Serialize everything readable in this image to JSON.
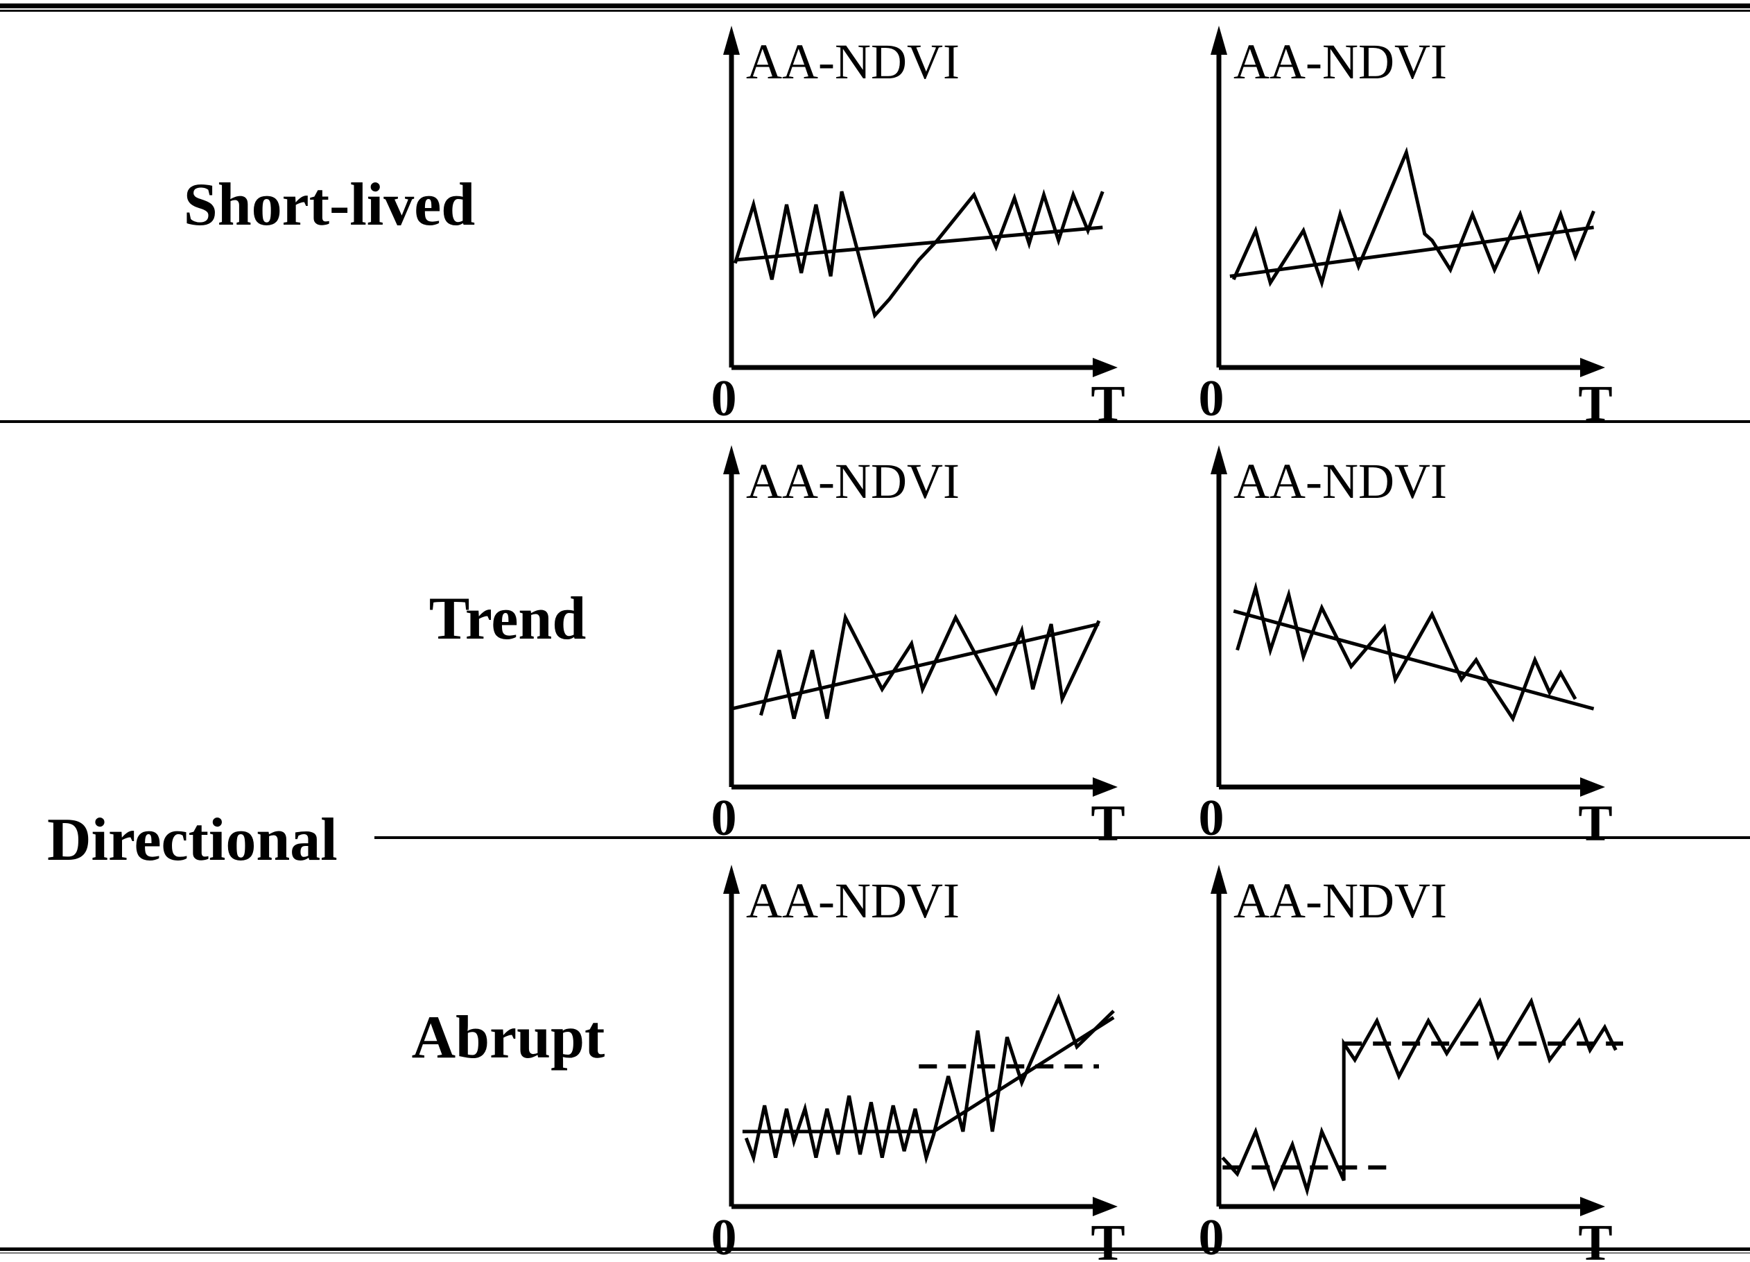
{
  "figure": {
    "background": "#ffffff",
    "ink_color": "#000000",
    "row_labels": {
      "short_lived": "Short-lived",
      "directional": "Directional",
      "trend": "Trend",
      "abrupt": "Abrupt"
    }
  },
  "chart_data": [
    {
      "id": "short-lived-recovery",
      "row": "Short-lived",
      "column": 1,
      "type": "line",
      "ylabel": "AA-NDVI",
      "xlabel": "T",
      "origin_label": "0",
      "x_range": [
        "0",
        "T"
      ],
      "description": "Noisy AA-NDVI series with a short-lived negative anomaly (dip) that recovers back to a slightly rising trend line.",
      "series": [
        {
          "name": "ndvi-signal",
          "style": "solid",
          "width": 5,
          "points": [
            [
              1,
              68
            ],
            [
              6,
              50
            ],
            [
              11,
              73
            ],
            [
              15,
              50
            ],
            [
              19,
              71
            ],
            [
              23,
              50
            ],
            [
              27,
              72
            ],
            [
              30,
              46
            ],
            [
              39,
              84
            ],
            [
              43,
              79
            ],
            [
              47,
              73
            ],
            [
              51,
              67
            ],
            [
              56,
              61
            ],
            [
              66,
              47
            ],
            [
              72,
              63
            ],
            [
              77,
              48
            ],
            [
              81,
              62
            ],
            [
              85,
              47
            ],
            [
              89,
              61
            ],
            [
              93,
              47
            ],
            [
              97,
              58
            ],
            [
              101,
              46
            ]
          ]
        },
        {
          "name": "trend-line",
          "style": "solid",
          "width": 5,
          "points": [
            [
              1,
              67
            ],
            [
              101,
              57
            ]
          ]
        }
      ]
    },
    {
      "id": "short-lived-spike",
      "row": "Short-lived",
      "column": 2,
      "type": "line",
      "ylabel": "AA-NDVI",
      "xlabel": "T",
      "origin_label": "0",
      "x_range": [
        "0",
        "T"
      ],
      "description": "Noisy AA-NDVI series with a short-lived positive anomaly (spike) returning to a slightly rising trend line.",
      "series": [
        {
          "name": "ndvi-signal",
          "style": "solid",
          "width": 5,
          "points": [
            [
              4,
              73
            ],
            [
              10,
              58
            ],
            [
              14,
              74
            ],
            [
              23,
              58
            ],
            [
              28,
              74
            ],
            [
              33,
              53
            ],
            [
              38,
              69
            ],
            [
              51,
              34
            ],
            [
              56,
              59
            ],
            [
              58,
              61
            ],
            [
              63,
              70
            ],
            [
              69,
              53
            ],
            [
              75,
              70
            ],
            [
              82,
              53
            ],
            [
              87,
              70
            ],
            [
              93,
              53
            ],
            [
              97,
              66
            ],
            [
              102,
              52
            ]
          ]
        },
        {
          "name": "trend-line",
          "style": "solid",
          "width": 5,
          "points": [
            [
              3,
              72
            ],
            [
              102,
              57
            ]
          ]
        }
      ]
    },
    {
      "id": "trend-increase",
      "row": "Directional / Trend",
      "column": 1,
      "type": "line",
      "ylabel": "AA-NDVI",
      "xlabel": "T",
      "origin_label": "0",
      "x_range": [
        "0",
        "T"
      ],
      "description": "Noisy AA-NDVI series gradually increasing along an upward linear trend line.",
      "series": [
        {
          "name": "ndvi-signal",
          "style": "solid",
          "width": 5,
          "points": [
            [
              8,
              78
            ],
            [
              13,
              58
            ],
            [
              17,
              79
            ],
            [
              22,
              58
            ],
            [
              26,
              79
            ],
            [
              31,
              48
            ],
            [
              41,
              70
            ],
            [
              49,
              56
            ],
            [
              52,
              70
            ],
            [
              61,
              48
            ],
            [
              72,
              71
            ],
            [
              79,
              52
            ],
            [
              82,
              70
            ],
            [
              87,
              50
            ],
            [
              90,
              73
            ],
            [
              100,
              49
            ]
          ]
        },
        {
          "name": "trend-line",
          "style": "solid",
          "width": 5,
          "points": [
            [
              0,
              76
            ],
            [
              100,
              50
            ]
          ]
        }
      ]
    },
    {
      "id": "trend-decrease",
      "row": "Directional / Trend",
      "column": 2,
      "type": "line",
      "ylabel": "AA-NDVI",
      "xlabel": "T",
      "origin_label": "0",
      "x_range": [
        "0",
        "T"
      ],
      "description": "Noisy AA-NDVI series gradually decreasing along a downward linear trend line.",
      "series": [
        {
          "name": "ndvi-signal",
          "style": "solid",
          "width": 5,
          "points": [
            [
              5,
              58
            ],
            [
              10,
              39
            ],
            [
              14,
              58
            ],
            [
              19,
              41
            ],
            [
              23,
              60
            ],
            [
              28,
              45
            ],
            [
              36,
              63
            ],
            [
              45,
              51
            ],
            [
              48,
              67
            ],
            [
              58,
              47
            ],
            [
              66,
              67
            ],
            [
              70,
              61
            ],
            [
              73,
              67
            ],
            [
              80,
              79
            ],
            [
              86,
              61
            ],
            [
              90,
              71
            ],
            [
              93,
              65
            ],
            [
              97,
              73
            ]
          ]
        },
        {
          "name": "trend-line",
          "style": "solid",
          "width": 5,
          "points": [
            [
              4,
              46
            ],
            [
              102,
              76
            ]
          ]
        }
      ]
    },
    {
      "id": "abrupt-accelerating-increase",
      "row": "Directional / Abrupt",
      "column": 1,
      "type": "line",
      "ylabel": "AA-NDVI",
      "xlabel": "T",
      "origin_label": "0",
      "x_range": [
        "0",
        "T"
      ],
      "description": "Stable noisy AA-NDVI level followed by an abrupt change to a steeply rising segment; dashed reference line marks the new mean level.",
      "series": [
        {
          "name": "ndvi-signal",
          "style": "solid",
          "width": 5,
          "points": [
            [
              4,
              79
            ],
            [
              6,
              85
            ],
            [
              9,
              69
            ],
            [
              12,
              85
            ],
            [
              15,
              70
            ],
            [
              17,
              80
            ],
            [
              20,
              70
            ],
            [
              23,
              85
            ],
            [
              26,
              70
            ],
            [
              29,
              84
            ],
            [
              32,
              66
            ],
            [
              35,
              84
            ],
            [
              38,
              68
            ],
            [
              41,
              85
            ],
            [
              44,
              69
            ],
            [
              47,
              83
            ],
            [
              50,
              70
            ],
            [
              53,
              85
            ],
            [
              55,
              78
            ],
            [
              59,
              60
            ],
            [
              63,
              77
            ],
            [
              67,
              46
            ],
            [
              71,
              77
            ],
            [
              75,
              48
            ],
            [
              79,
              62
            ],
            [
              89,
              36
            ],
            [
              94,
              51
            ],
            [
              104,
              40
            ]
          ]
        },
        {
          "name": "baseline-mean-line",
          "style": "solid",
          "width": 5,
          "points": [
            [
              3,
              77
            ],
            [
              55,
              77
            ]
          ]
        },
        {
          "name": "post-change-trend-line",
          "style": "solid",
          "width": 5,
          "points": [
            [
              55,
              77
            ],
            [
              104,
              42
            ]
          ]
        },
        {
          "name": "reference-dashed-line",
          "style": "dashed",
          "width": 6,
          "points": [
            [
              51,
              57
            ],
            [
              100,
              57
            ]
          ]
        }
      ]
    },
    {
      "id": "abrupt-step-change",
      "row": "Directional / Abrupt",
      "column": 2,
      "type": "line",
      "ylabel": "AA-NDVI",
      "xlabel": "T",
      "origin_label": "0",
      "x_range": [
        "0",
        "T"
      ],
      "description": "Noisy AA-NDVI series around a low mean (dashed), then an abrupt vertical step up to a higher mean level (dashed).",
      "series": [
        {
          "name": "ndvi-signal",
          "style": "solid",
          "width": 5,
          "points": [
            [
              1,
              85
            ],
            [
              5,
              90
            ],
            [
              10,
              77
            ],
            [
              15,
              94
            ],
            [
              20,
              81
            ],
            [
              24,
              95
            ],
            [
              28,
              77
            ],
            [
              34,
              92
            ],
            [
              34,
              50
            ],
            [
              37,
              55
            ],
            [
              43,
              43
            ],
            [
              49,
              60
            ],
            [
              57,
              43
            ],
            [
              62,
              53
            ],
            [
              71,
              37
            ],
            [
              76,
              54
            ],
            [
              85,
              37
            ],
            [
              90,
              55
            ],
            [
              98,
              43
            ],
            [
              101,
              52
            ],
            [
              105,
              45
            ],
            [
              108,
              52
            ]
          ]
        },
        {
          "name": "low-mean-dashed-line",
          "style": "dashed",
          "width": 6,
          "points": [
            [
              1,
              88
            ],
            [
              46,
              88
            ]
          ]
        },
        {
          "name": "high-mean-dashed-line",
          "style": "dashed",
          "width": 6,
          "points": [
            [
              34,
              50
            ],
            [
              110,
              50
            ]
          ]
        }
      ]
    }
  ]
}
